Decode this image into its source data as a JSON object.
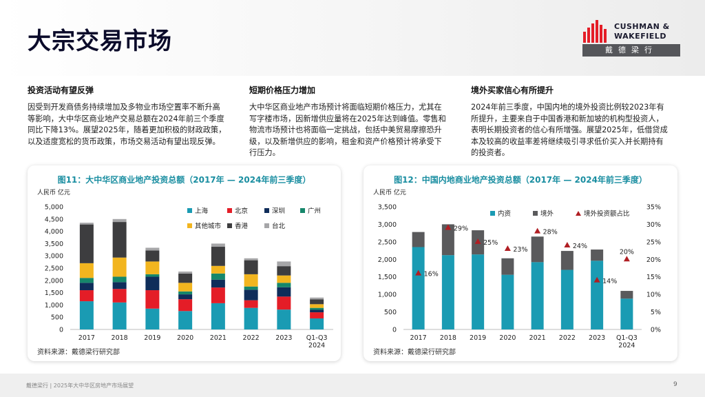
{
  "page": {
    "title": "大宗交易市场",
    "logo_line1": "CUSHMAN &",
    "logo_line2": "WAKEFIELD",
    "logo_cn": "戴德梁行",
    "footer_text": "戴德梁行 | 2025年大中华区房地产市场展望",
    "page_number": "9"
  },
  "columns": [
    {
      "heading": "投资活动有望反弹",
      "body": "因受到开发商债务持续增加及多物业市场空置率不断升高等影响，大中华区商业地产交易总额在2024年前三个季度同比下降13%。展望2025年，随着更加积极的财政政策，以及适度宽松的货币政策，市场交易活动有望出现反弹。"
    },
    {
      "heading": "短期价格压力增加",
      "body": "大中华区商业地产市场预计将面临短期价格压力，尤其在写字楼市场，因新增供应量将在2025年达到峰值。零售和物流市场预计也将面临一定挑战，包括中美贸易摩擦恐升级，以及新增供应的影响，租金和资产价格预计将承受下行压力。"
    },
    {
      "heading": "境外买家信心有所提升",
      "body": "2024年前三季度，中国内地的境外投资比例较2023年有所提升，主要来自于中国香港和新加坡的机构型投资人，表明长期投资者的信心有所增强。展望2025年，低借贷成本及较高的收益率差将继续吸引寻求低价买入并长期持有的投资者。"
    }
  ],
  "chart_data": [
    {
      "type": "bar",
      "stacked": true,
      "title": "图11：大中华区商业地产投资总额（2017年 — 2024年前三季度）",
      "unit_label": "人民币 亿元",
      "source": "资料来源：戴德梁行研究部",
      "categories": [
        "2017",
        "2018",
        "2019",
        "2020",
        "2021",
        "2022",
        "2023",
        "Q1-Q3 2024"
      ],
      "ylim": [
        0,
        5000
      ],
      "yticks": [
        "0",
        "500",
        "1,000",
        "1,500",
        "2,000",
        "2,500",
        "3,000",
        "3,500",
        "4,000",
        "4,500",
        "5,000"
      ],
      "grid": false,
      "legend_position": "top",
      "series": [
        {
          "name": "上海",
          "color": "#1a9bb3",
          "values": [
            1150,
            1100,
            850,
            750,
            1070,
            880,
            810,
            450
          ]
        },
        {
          "name": "北京",
          "color": "#e41d27",
          "values": [
            450,
            550,
            750,
            480,
            640,
            310,
            530,
            250
          ]
        },
        {
          "name": "深圳",
          "color": "#0f2d5a",
          "values": [
            300,
            280,
            550,
            200,
            320,
            430,
            380,
            100
          ]
        },
        {
          "name": "广州",
          "color": "#16876b",
          "values": [
            200,
            220,
            100,
            120,
            250,
            130,
            180,
            80
          ]
        },
        {
          "name": "其他城市",
          "color": "#f2b51f",
          "values": [
            600,
            780,
            520,
            350,
            310,
            500,
            300,
            150
          ]
        },
        {
          "name": "香港",
          "color": "#3d3d3f",
          "values": [
            1580,
            1450,
            450,
            380,
            780,
            570,
            380,
            200
          ]
        },
        {
          "name": "台北",
          "color": "#a6a6a8",
          "values": [
            70,
            120,
            110,
            80,
            130,
            80,
            190,
            70
          ]
        }
      ]
    },
    {
      "type": "bar",
      "stacked": true,
      "title": "图12：中国内地商业地产投资总额（2017年 — 2024年前三季度）",
      "unit_label": "人民币 亿元",
      "source": "资料来源：戴德梁行研究部",
      "categories": [
        "2017",
        "2018",
        "2019",
        "2020",
        "2021",
        "2022",
        "2023",
        "Q1-Q3 2024"
      ],
      "ylim": [
        0,
        3500
      ],
      "yticks": [
        "0",
        "500",
        "1,000",
        "1,500",
        "2,000",
        "2,500",
        "3,000",
        "3,500"
      ],
      "y2lim": [
        0,
        35
      ],
      "y2ticks": [
        "0%",
        "5%",
        "10%",
        "15%",
        "20%",
        "25%",
        "30%",
        "35%"
      ],
      "grid": false,
      "legend_position": "top",
      "series": [
        {
          "name": "内资",
          "color": "#1a9bb3",
          "values": [
            2350,
            2120,
            2140,
            1560,
            1920,
            1700,
            1960,
            880
          ]
        },
        {
          "name": "境外",
          "color": "#5a5a5c",
          "values": [
            430,
            880,
            690,
            470,
            730,
            540,
            320,
            220
          ]
        }
      ],
      "line_series": {
        "name": "境外投资额占比",
        "color": "#b01e23",
        "marker": "triangle",
        "values": [
          16,
          29,
          25,
          23,
          28,
          24,
          14,
          20
        ],
        "labels": [
          "16%",
          "29%",
          "25%",
          "23%",
          "28%",
          "24%",
          "14%",
          "20%"
        ]
      }
    }
  ]
}
